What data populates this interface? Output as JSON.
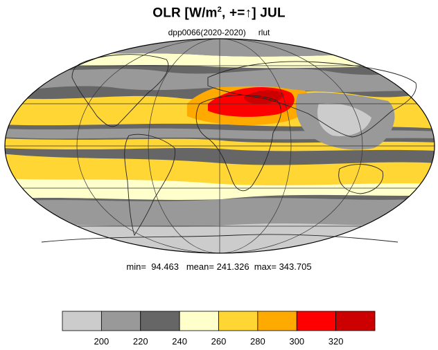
{
  "title": {
    "prefix": "OLR [W/m",
    "sup": "2",
    "suffix": ", +=",
    "arrow": "↑",
    "tail": "] JUL"
  },
  "subtitle": {
    "experiment": "dpp0066(2020-2020)",
    "variable": "rlut"
  },
  "stats": {
    "min_label": "min=",
    "min": "94.463",
    "mean_label": "mean=",
    "mean": "241.326",
    "max_label": "max=",
    "max": "343.705"
  },
  "colorbar": {
    "colors": [
      "#cccccc",
      "#999999",
      "#666666",
      "#ffffcc",
      "#ffd633",
      "#ffaa00",
      "#ff0000",
      "#cc0000"
    ],
    "tick_labels": [
      "200",
      "220",
      "240",
      "260",
      "280",
      "300",
      "320"
    ]
  },
  "map": {
    "projection": "mollweide",
    "ocean_base_color": "#666666",
    "land_outline_color": "#222222",
    "graticule_color": "#333333"
  }
}
